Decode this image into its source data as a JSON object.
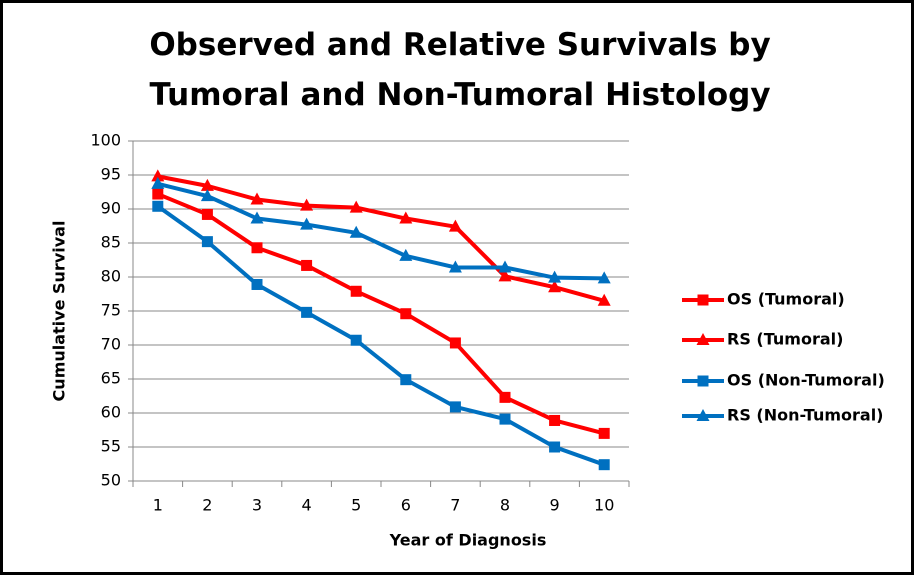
{
  "chart_data": {
    "type": "line",
    "title": "Observed and Relative Survivals by Tumoral and Non-Tumoral Histology",
    "x_label": "Year of Diagnosis",
    "y_label": "Cumulative Survival",
    "categories": [
      "1",
      "2",
      "3",
      "4",
      "5",
      "6",
      "7",
      "8",
      "9",
      "10"
    ],
    "series": [
      {
        "name": "OS (Tumoral)",
        "color": "#ff0000",
        "marker": "square",
        "values": [
          92.2,
          89.2,
          84.3,
          81.7,
          77.9,
          74.6,
          70.3,
          62.3,
          58.9,
          57.0
        ]
      },
      {
        "name": "RS (Tumoral)",
        "color": "#ff0000",
        "marker": "triangle",
        "values": [
          94.8,
          93.4,
          91.4,
          90.5,
          90.2,
          88.6,
          87.4,
          80.1,
          78.5,
          76.5
        ]
      },
      {
        "name": "OS (Non-Tumoral)",
        "color": "#0070c0",
        "marker": "square",
        "values": [
          90.4,
          85.2,
          78.9,
          74.8,
          70.7,
          64.9,
          60.9,
          59.1,
          55.0,
          52.4
        ]
      },
      {
        "name": "RS (Non-Tumoral)",
        "color": "#0070c0",
        "marker": "triangle",
        "values": [
          93.7,
          91.9,
          88.6,
          87.7,
          86.5,
          83.1,
          81.4,
          81.4,
          79.9,
          79.8
        ]
      }
    ],
    "ylim": [
      50,
      100
    ],
    "yticks": [
      50,
      55,
      60,
      65,
      70,
      75,
      80,
      85,
      90,
      95,
      100
    ],
    "grid": true,
    "legend": "right"
  }
}
